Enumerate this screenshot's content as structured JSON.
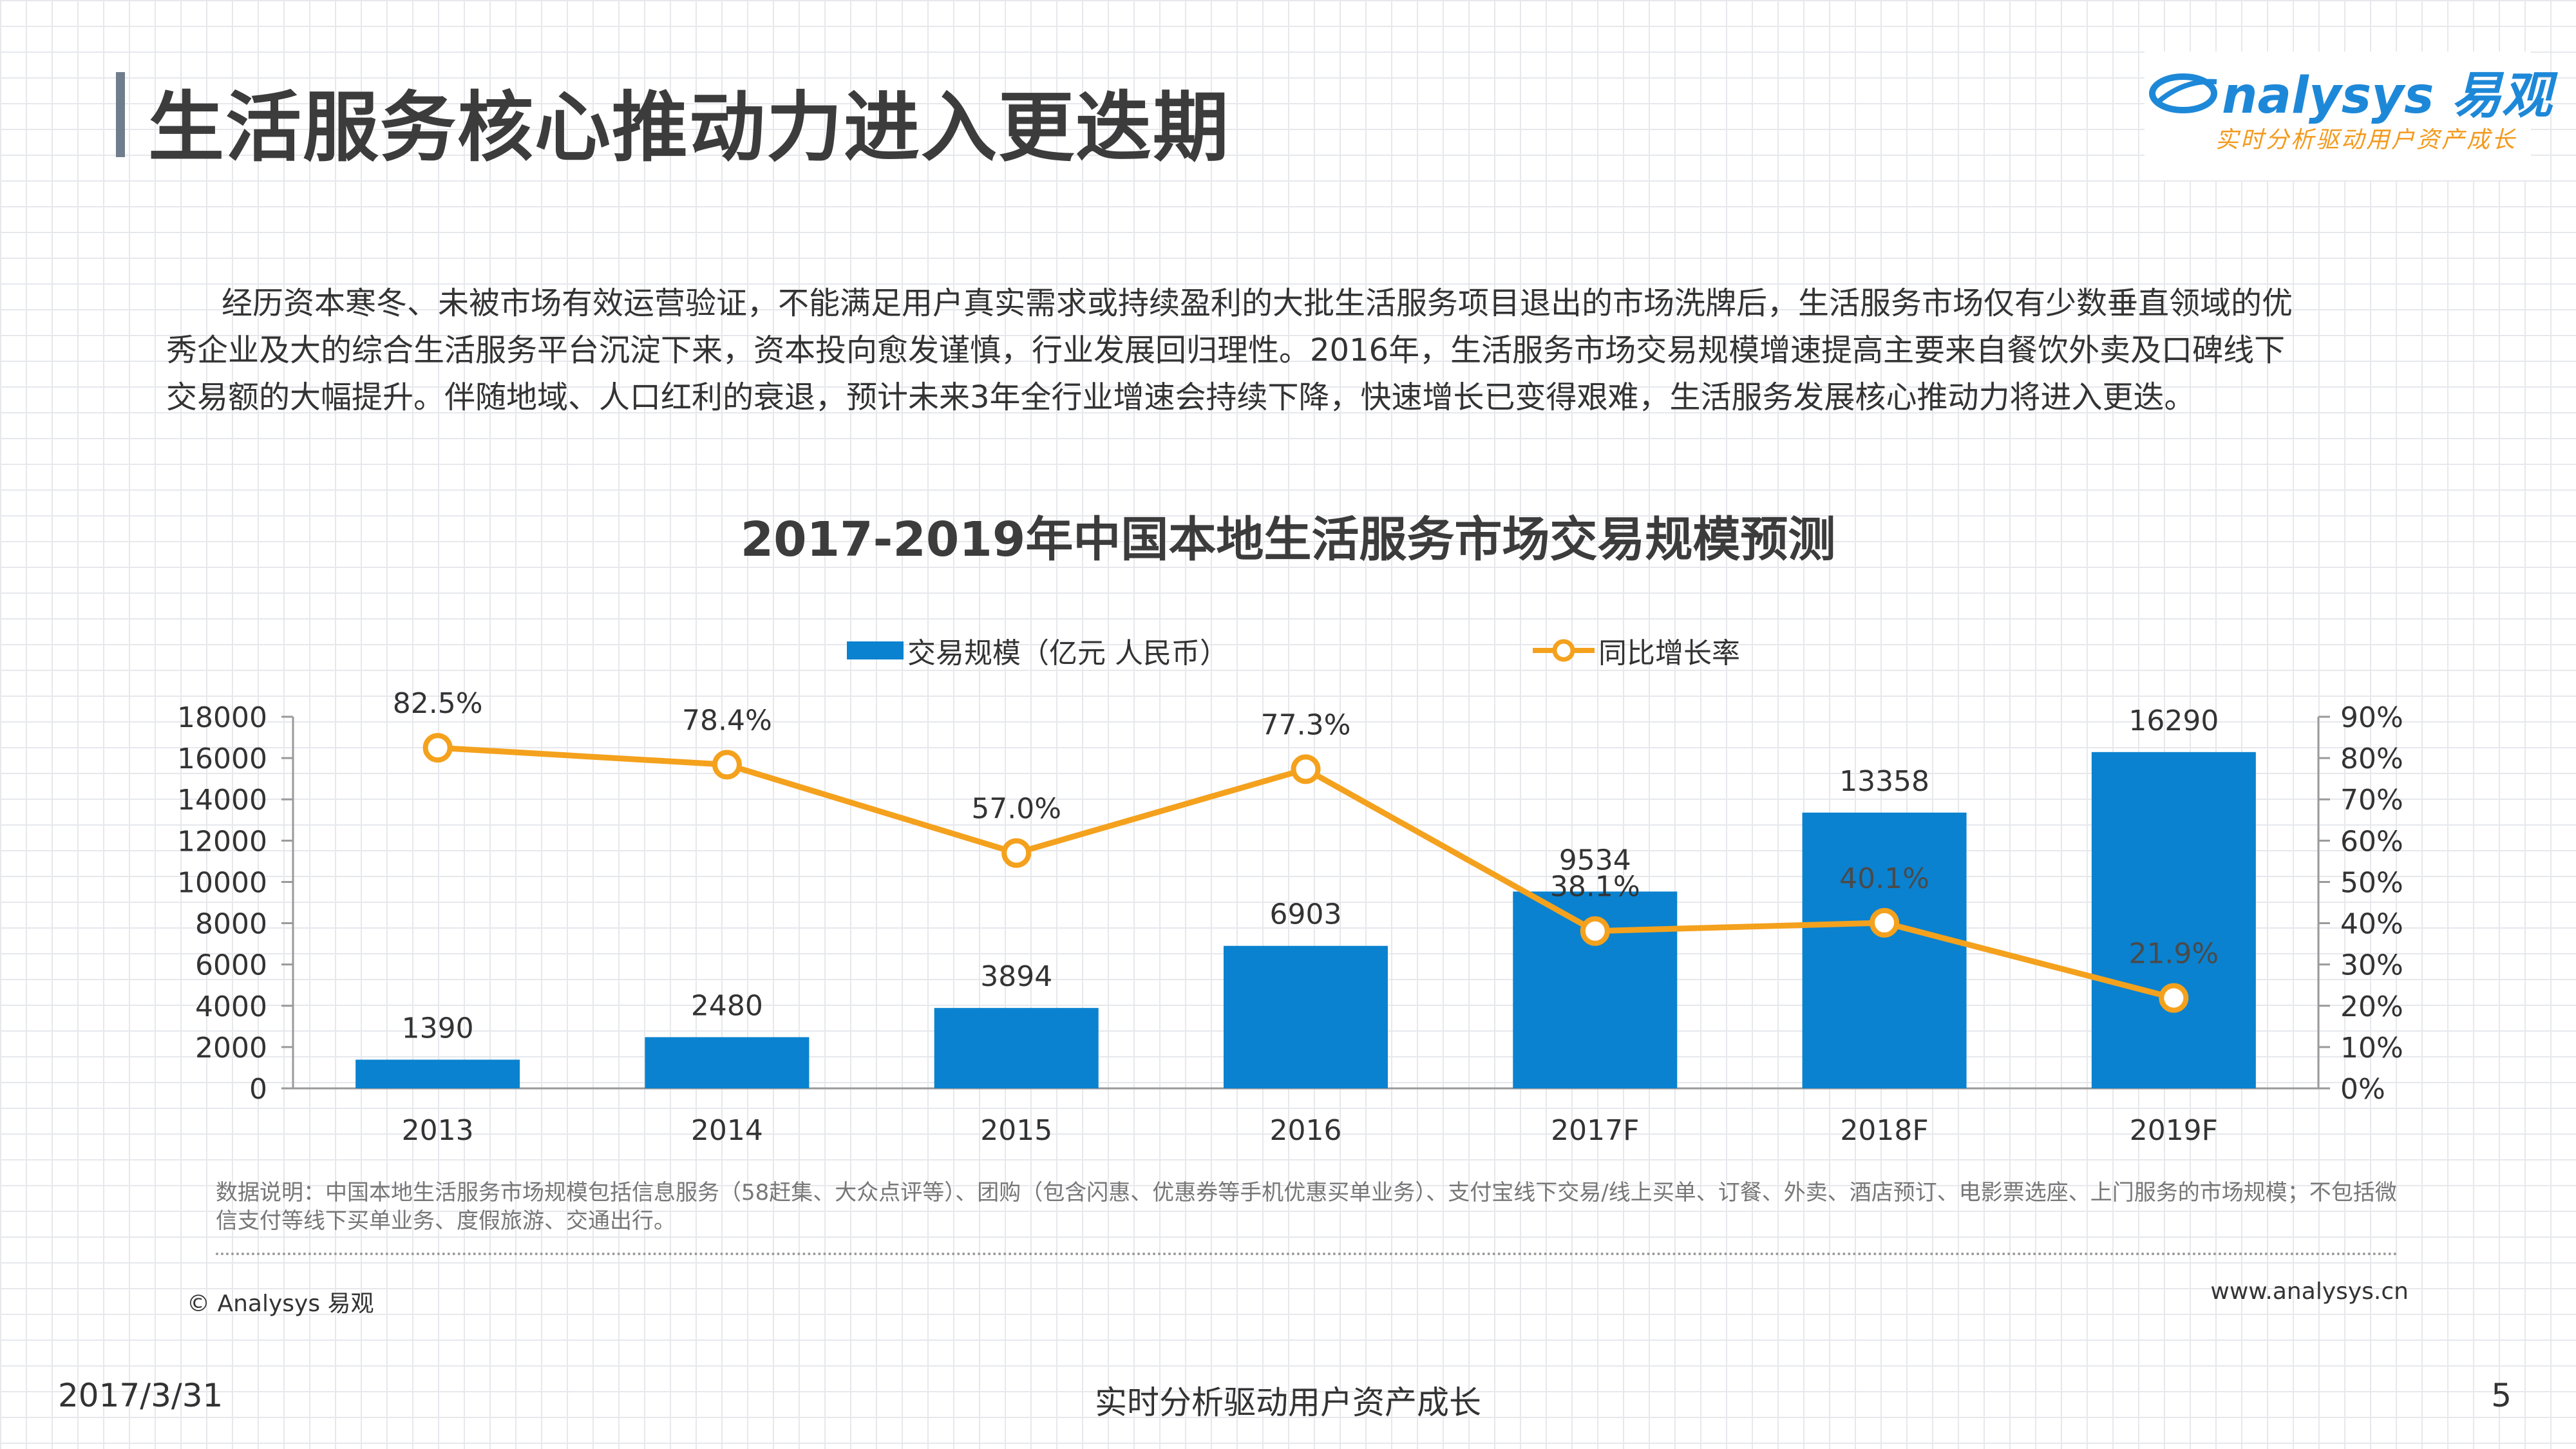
{
  "colors": {
    "accent": "#6f7d8c",
    "bar": "#0a82cf",
    "line": "#f4a11d",
    "brand_blue": "#1e88d8",
    "brand_orange": "#f39a1e"
  },
  "header": {
    "title": "生活服务核心推动力进入更迭期"
  },
  "logo": {
    "brand": "nalysys 易观",
    "tagline": "实时分析驱动用户资产成长"
  },
  "intro": {
    "lines": [
      "经历资本寒冬、未被市场有效运营验证，不能满足用户真实需求或持续盈利的大批生活服务项目退出的市场洗牌后，生活服务市场仅有少数垂直领域的优",
      "秀企业及大的综合生活服务平台沉淀下来，资本投向愈发谨慎，行业发展回归理性。2016年，生活服务市场交易规模增速提高主要来自餐饮外卖及口碑线下",
      "交易额的大幅提升。伴随地域、人口红利的衰退，预计未来3年全行业增速会持续下降，快速增长已变得艰难，生活服务发展核心推动力将进入更迭。"
    ]
  },
  "chart_data": {
    "type": "bar",
    "title": "2017-2019年中国本地生活服务市场交易规模预测",
    "categories": [
      "2013",
      "2014",
      "2015",
      "2016",
      "2017F",
      "2018F",
      "2019F"
    ],
    "series": [
      {
        "name": "交易规模（亿元 人民币）",
        "type": "bar",
        "axis": "left",
        "values": [
          1390,
          2480,
          3894,
          6903,
          9534,
          13358,
          16290
        ]
      },
      {
        "name": "同比增长率",
        "type": "line",
        "axis": "right",
        "values": [
          82.5,
          78.4,
          57.0,
          77.3,
          38.1,
          40.1,
          21.9
        ],
        "labels": [
          "82.5%",
          "78.4%",
          "57.0%",
          "77.3%",
          "38.1%",
          "40.1%",
          "21.9%"
        ]
      }
    ],
    "left_axis": {
      "ylim": [
        0,
        18000
      ],
      "ticks": [
        "0",
        "2000",
        "4000",
        "6000",
        "8000",
        "10000",
        "12000",
        "14000",
        "16000",
        "18000"
      ]
    },
    "right_axis": {
      "ylim": [
        0,
        90
      ],
      "ticks": [
        "0%",
        "10%",
        "20%",
        "30%",
        "40%",
        "50%",
        "60%",
        "70%",
        "80%",
        "90%"
      ]
    },
    "legend_position": "top",
    "grid": false
  },
  "note": "数据说明：中国本地生活服务市场规模包括信息服务（58赶集、大众点评等）、团购（包含闪惠、优惠券等手机优惠买单业务）、支付宝线下交易/线上买单、订餐、外卖、酒店预订、电影票选座、上门服务的市场规模；不包括微信支付等线下买单业务、度假旅游、交通出行。",
  "copyright": "© Analysys 易观",
  "website": "www.analysys.cn",
  "footer": {
    "date": "2017/3/31",
    "slogan": "实时分析驱动用户资产成长",
    "page": "5"
  }
}
